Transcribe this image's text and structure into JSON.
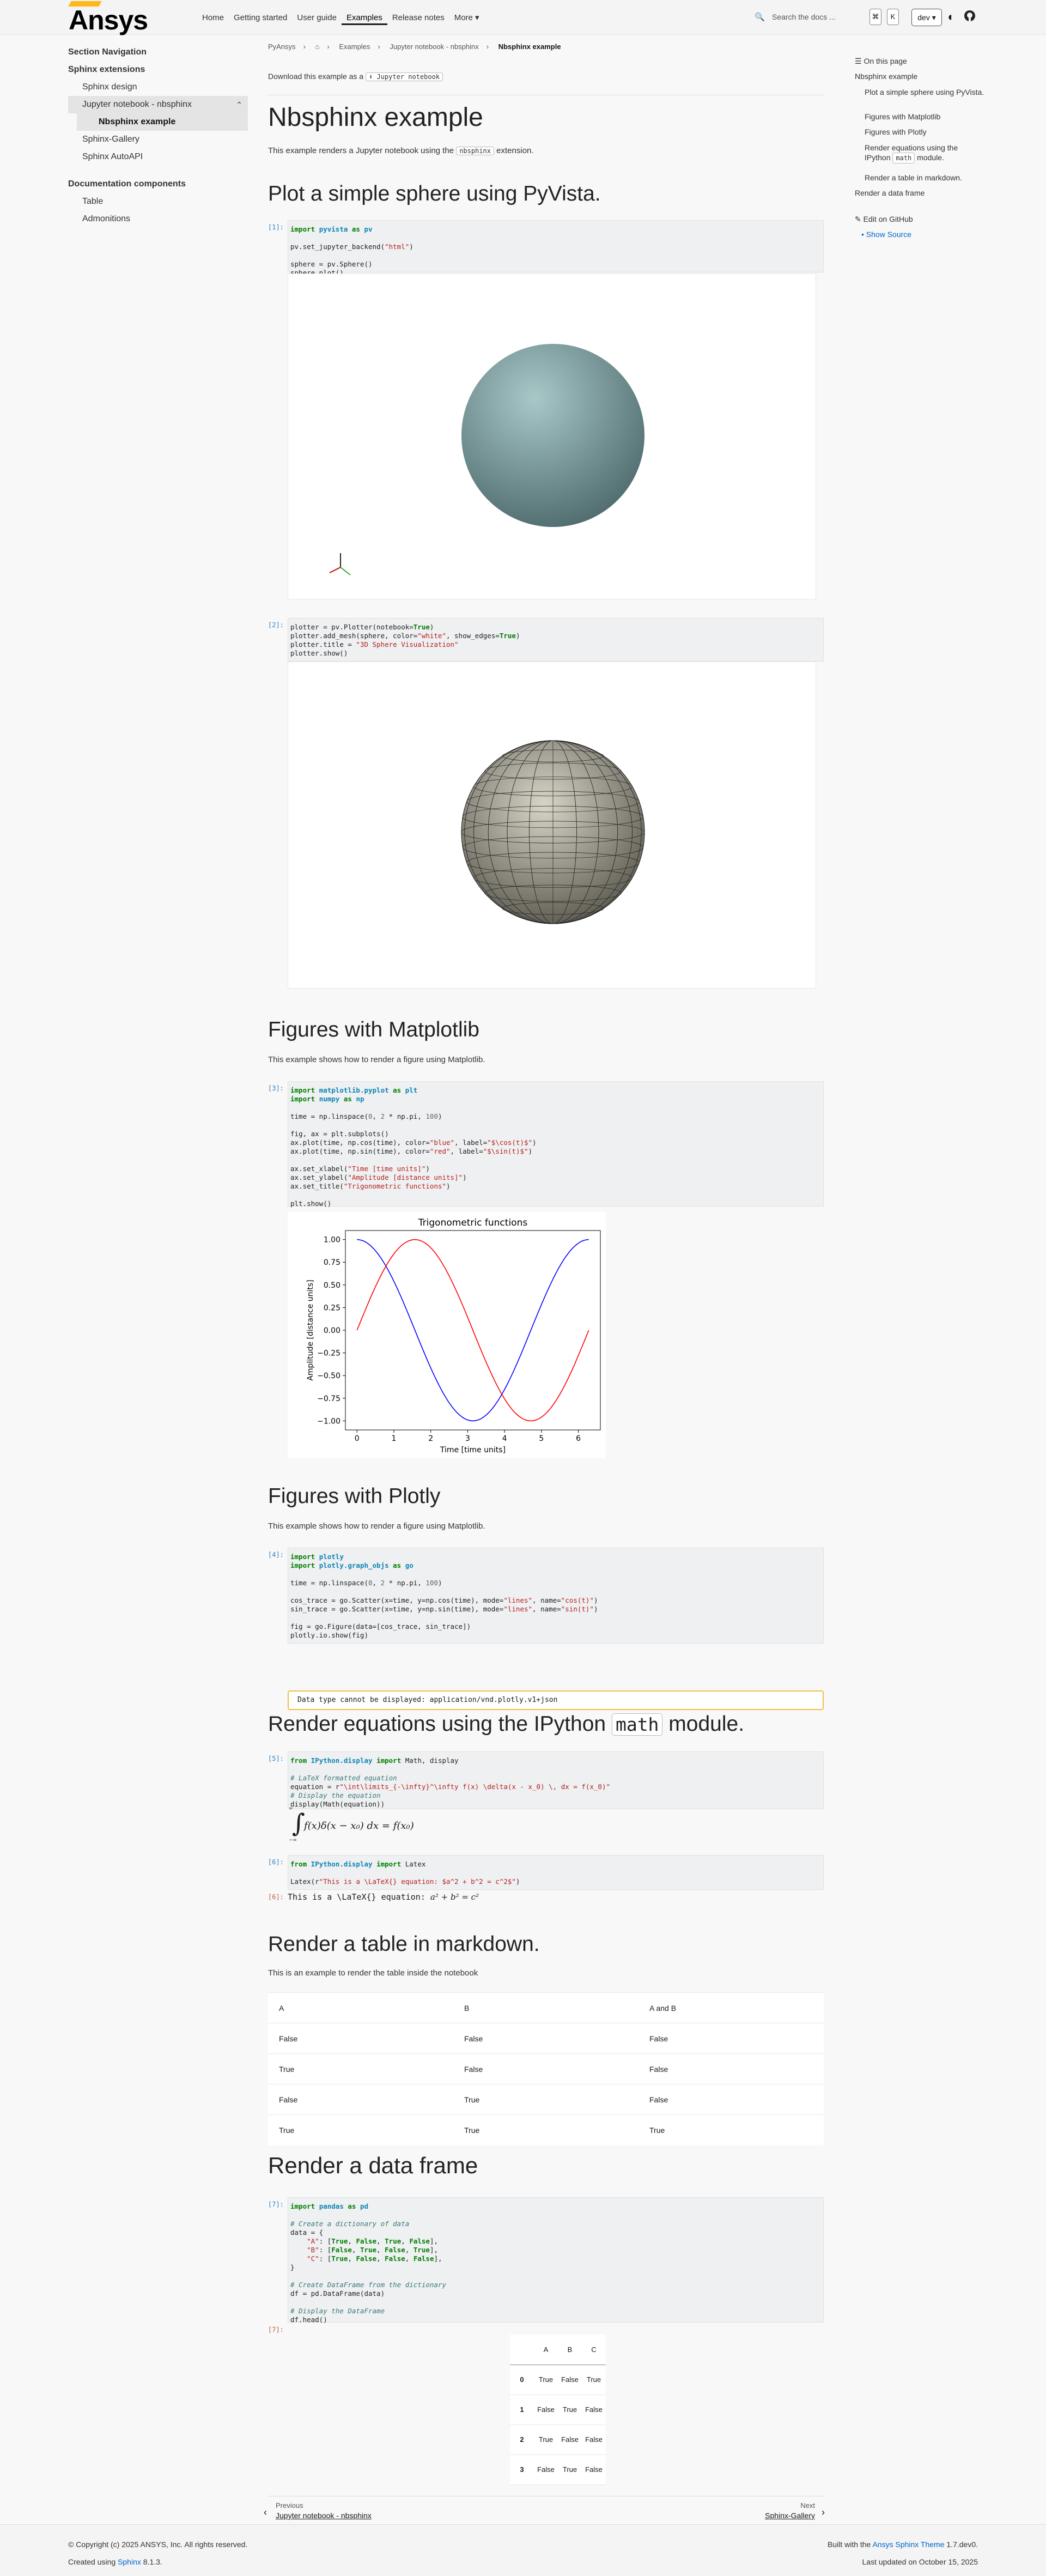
{
  "header": {
    "brand": "Ansys",
    "nav": [
      "Home",
      "Getting started",
      "User guide",
      "Examples",
      "Release notes",
      "More ▾"
    ],
    "active": "Examples",
    "search_placeholder": "Search the docs ...",
    "kbd1": "⌘",
    "kbd2": "K",
    "version": "dev ▾"
  },
  "sidebar": {
    "section_nav": "Section Navigation",
    "group1": "Sphinx extensions",
    "items1": [
      "Sphinx design",
      "Jupyter notebook - nbsphinx",
      "Nbsphinx example",
      "Sphinx-Gallery",
      "Sphinx AutoAPI"
    ],
    "group2": "Documentation components",
    "items2": [
      "Table",
      "Admonitions"
    ]
  },
  "breadcrumb": [
    "PyAnsys",
    "⌂",
    "Examples",
    "Jupyter notebook - nbsphinx",
    "Nbsphinx example"
  ],
  "download": {
    "text": "Download this example as a",
    "badge": "⬇ Jupyter notebook"
  },
  "page": {
    "title": "Nbsphinx example",
    "intro_pre": "This example renders a Jupyter notebook using the",
    "intro_tag": "nbsphinx",
    "intro_post": "extension."
  },
  "sections": {
    "s1": "Plot a simple sphere using PyVista.",
    "s2": "Figures with Matplotlib",
    "s2p": "This example shows how to render a figure using Matplotlib.",
    "s3": "Figures with Plotly",
    "s3p": "This example shows how to render a figure using Matplotlib.",
    "s4a": "Render equations using the IPython",
    "s4b": "math",
    "s4c": "module.",
    "s5": "Render a table in markdown.",
    "s5p": "This is an example to render the table inside the notebook",
    "s6": "Render a data frame"
  },
  "prompts": {
    "p1": "[1]:",
    "p2": "[2]:",
    "p3": "[3]:",
    "p4": "[4]:",
    "p5": "[5]:",
    "p6": "[6]:",
    "p6o": "[6]:",
    "p7": "[7]:",
    "p7o": "[7]:"
  },
  "plotly_error": "Data type cannot be displayed: application/vnd.plotly.v1+json",
  "latex_out": "This is a \\LaTeX{} equation:",
  "md_table": {
    "headers": [
      "A",
      "B",
      "A and B"
    ],
    "rows": [
      [
        "False",
        "False",
        "False"
      ],
      [
        "True",
        "False",
        "False"
      ],
      [
        "False",
        "True",
        "False"
      ],
      [
        "True",
        "True",
        "True"
      ]
    ]
  },
  "df_table": {
    "headers": [
      "",
      "A",
      "B",
      "C"
    ],
    "rows": [
      [
        "0",
        "True",
        "False",
        "True"
      ],
      [
        "1",
        "False",
        "True",
        "False"
      ],
      [
        "2",
        "True",
        "False",
        "False"
      ],
      [
        "3",
        "False",
        "True",
        "False"
      ]
    ]
  },
  "pager": {
    "prev_label": "Previous",
    "prev_title": "Jupyter notebook - nbsphinx",
    "next_label": "Next",
    "next_title": "Sphinx-Gallery"
  },
  "toc": {
    "title": "On this page",
    "items": [
      "Nbsphinx example",
      "Plot a simple sphere using PyVista.",
      "Figures with Matplotlib",
      "Figures with Plotly",
      "Render equations using the IPython",
      "module.",
      "Render a table in markdown.",
      "Render a data frame"
    ],
    "math_tag": "math",
    "edit": "Edit on GitHub",
    "show_source": "Show Source"
  },
  "footer": {
    "copyright": "© Copyright (c) 2025 ANSYS, Inc. All rights reserved.",
    "created_pre": "Created using",
    "created_link": "Sphinx",
    "created_post": "8.1.3.",
    "built_pre": "Built with the",
    "built_link": "Ansys Sphinx Theme",
    "built_post": "1.7.dev0.",
    "updated": "Last updated on October 15, 2025"
  },
  "colors": {
    "accent": "#ffb71b",
    "link": "#0066cc",
    "cos": "blue",
    "sin": "red"
  },
  "chart_data": {
    "type": "line",
    "title": "Trigonometric functions",
    "xlabel": "Time [time units]",
    "ylabel": "Amplitude [distance units]",
    "xlim": [
      -0.314,
      6.597
    ],
    "ylim": [
      -1.1,
      1.1
    ],
    "xticks": [
      "0",
      "1",
      "2",
      "3",
      "4",
      "5",
      "6"
    ],
    "yticks": [
      "1.00",
      "0.75",
      "0.50",
      "0.25",
      "0.00",
      "−0.25",
      "−0.50",
      "−0.75",
      "−1.00"
    ],
    "x_range": [
      0,
      6.283
    ],
    "series": [
      {
        "name": "$\\cos(t)$",
        "color": "blue",
        "fn": "cos"
      },
      {
        "name": "$\\sin(t)$",
        "color": "red",
        "fn": "sin"
      }
    ]
  }
}
